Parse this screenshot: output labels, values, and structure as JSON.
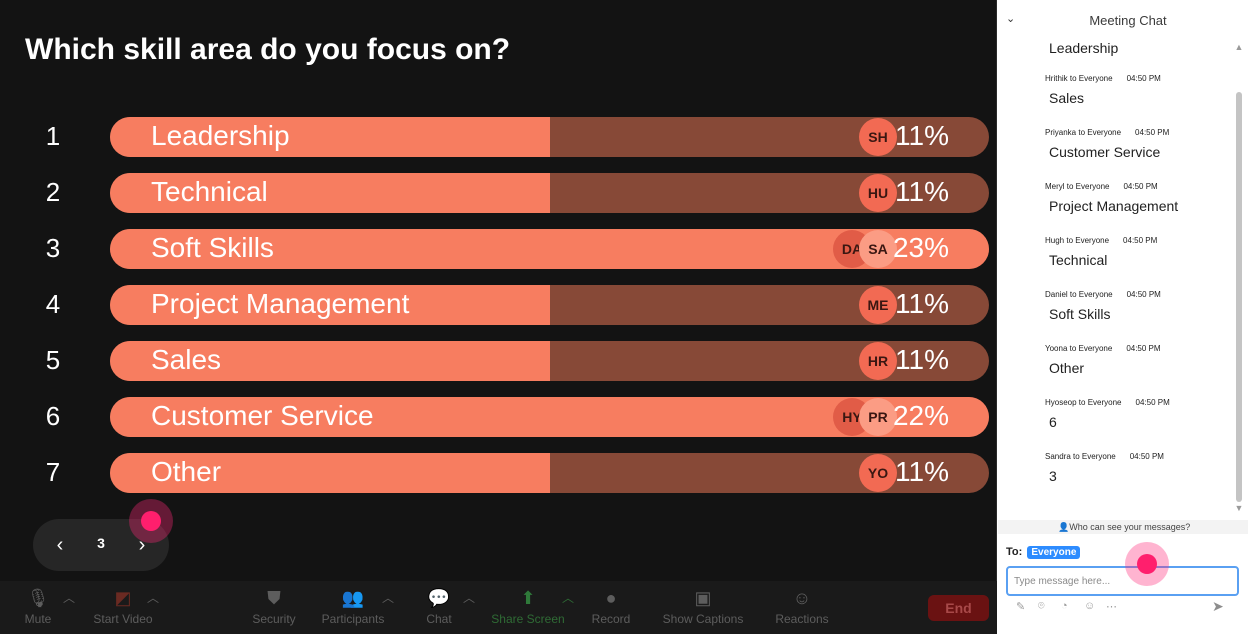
{
  "poll": {
    "question": "Which skill area do you focus on?",
    "options": [
      {
        "num": "1",
        "label": "Leadership",
        "percent": "11%",
        "fill": 0.5,
        "avatars": [
          "SH"
        ]
      },
      {
        "num": "2",
        "label": "Technical",
        "percent": "11%",
        "fill": 0.5,
        "avatars": [
          "HU"
        ]
      },
      {
        "num": "3",
        "label": "Soft Skills",
        "percent": "23%",
        "fill": 1.0,
        "avatars": [
          "DA",
          "SA"
        ]
      },
      {
        "num": "4",
        "label": "Project Management",
        "percent": "11%",
        "fill": 0.5,
        "avatars": [
          "ME"
        ]
      },
      {
        "num": "5",
        "label": "Sales",
        "percent": "11%",
        "fill": 0.5,
        "avatars": [
          "HR"
        ]
      },
      {
        "num": "6",
        "label": "Customer Service",
        "percent": "22%",
        "fill": 1.0,
        "avatars": [
          "HY",
          "PR"
        ]
      },
      {
        "num": "7",
        "label": "Other",
        "percent": "11%",
        "fill": 0.5,
        "avatars": [
          "YO"
        ]
      }
    ]
  },
  "pager": {
    "prev": "‹",
    "page": "3",
    "next": "›"
  },
  "toolbar": {
    "mute": "Mute",
    "start_video": "Start Video",
    "security": "Security",
    "participants": "Participants",
    "chat": "Chat",
    "share_screen": "Share Screen",
    "record": "Record",
    "show_captions": "Show Captions",
    "reactions": "Reactions",
    "end": "End"
  },
  "chat": {
    "title": "Meeting Chat",
    "first_message": "Leadership",
    "messages": [
      {
        "sender": "Hrithik to Everyone",
        "time": "04:50 PM",
        "text": "Sales"
      },
      {
        "sender": "Priyanka to Everyone",
        "time": "04:50 PM",
        "text": "Customer Service"
      },
      {
        "sender": "Meryl to Everyone",
        "time": "04:50 PM",
        "text": "Project Management"
      },
      {
        "sender": "Hugh to Everyone",
        "time": "04:50 PM",
        "text": "Technical"
      },
      {
        "sender": "Daniel to Everyone",
        "time": "04:50 PM",
        "text": "Soft Skills"
      },
      {
        "sender": "Yoona to Everyone",
        "time": "04:50 PM",
        "text": "Other"
      },
      {
        "sender": "Hyoseop to Everyone",
        "time": "04:50 PM",
        "text": "6"
      },
      {
        "sender": "Sandra to Everyone",
        "time": "04:50 PM",
        "text": "3"
      }
    ],
    "visibility": "Who can see your messages?",
    "to_label": "To:",
    "to_value": "Everyone",
    "input_placeholder": "Type message here..."
  }
}
